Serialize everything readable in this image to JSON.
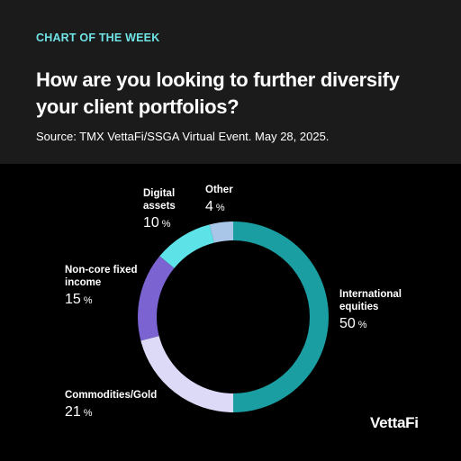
{
  "header": {
    "kicker": "CHART OF THE WEEK",
    "title": "How are you looking to further diversify your client portfolios?",
    "source": "Source: TMX VettaFi/SSGA Virtual Event. May 28, 2025."
  },
  "chart_data": {
    "type": "donut",
    "categories": [
      "International equities",
      "Commodities/Gold",
      "Non-core fixed income",
      "Digital assets",
      "Other"
    ],
    "values": [
      50,
      21,
      15,
      10,
      4
    ],
    "unit": "%",
    "colors": [
      "#1a9ea1",
      "#dddaf8",
      "#7b63d1",
      "#5de2e7",
      "#a9c5e8"
    ]
  },
  "logo": "VettaFi"
}
